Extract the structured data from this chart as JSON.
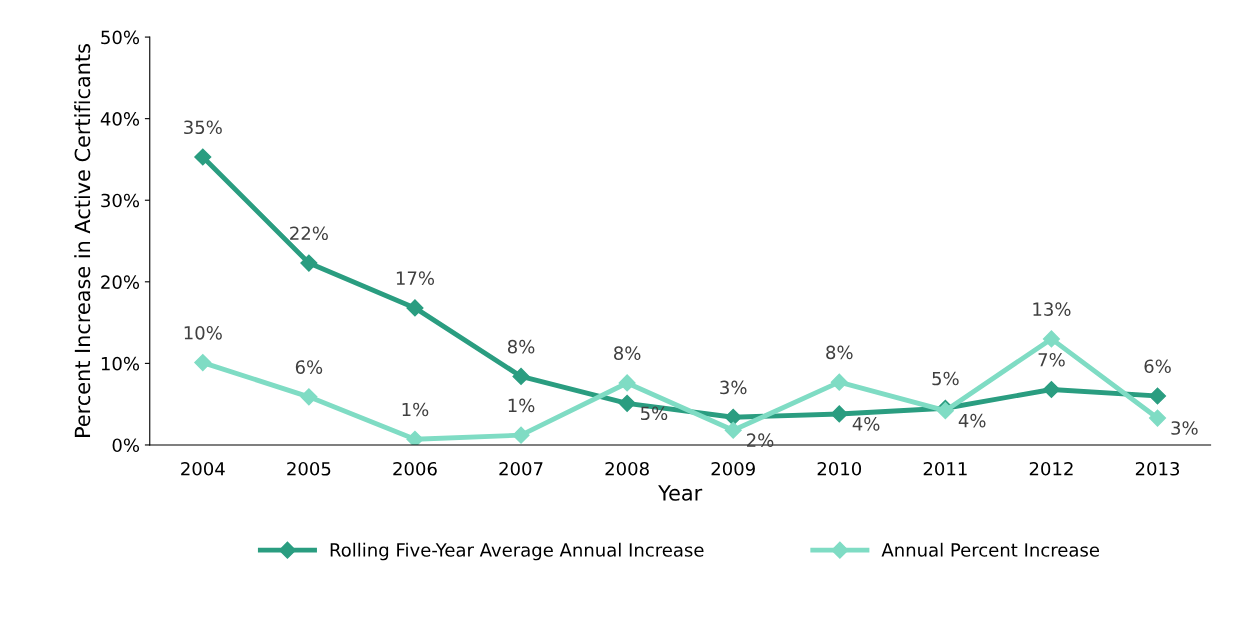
{
  "chart_data": {
    "type": "line",
    "xlabel": "Year",
    "ylabel": "Percent Increase in Active Certificants",
    "categories": [
      "2004",
      "2005",
      "2006",
      "2007",
      "2008",
      "2009",
      "2010",
      "2011",
      "2012",
      "2013"
    ],
    "series": [
      {
        "name": "Rolling Five-Year Average Annual Increase",
        "color": "#2a9d80",
        "values": [
          35.3,
          22.3,
          16.8,
          8.4,
          5.1,
          3.4,
          3.8,
          4.5,
          6.8,
          6.0
        ],
        "value_labels": [
          "35%",
          "22%",
          "17%",
          "8%",
          "5%",
          "3%",
          "4%",
          "5%",
          "7%",
          "6%"
        ]
      },
      {
        "name": "Annual Percent Increase",
        "color": "#7fdcc4",
        "values": [
          10.1,
          5.9,
          0.7,
          1.2,
          7.6,
          1.8,
          7.7,
          4.2,
          13.0,
          3.3
        ],
        "value_labels": [
          "10%",
          "6%",
          "1%",
          "1%",
          "8%",
          "2%",
          "8%",
          "4%",
          "13%",
          "3%"
        ]
      }
    ],
    "ylim": [
      0,
      50
    ],
    "yticks": [
      {
        "value": 0,
        "label": "0%"
      },
      {
        "value": 10,
        "label": "10%"
      },
      {
        "value": 20,
        "label": "20%"
      },
      {
        "value": 30,
        "label": "30%"
      },
      {
        "value": 40,
        "label": "40%"
      },
      {
        "value": 50,
        "label": "50%"
      }
    ],
    "marker": "diamond",
    "line_style": "solid",
    "grid": false,
    "legend": "bottom"
  }
}
